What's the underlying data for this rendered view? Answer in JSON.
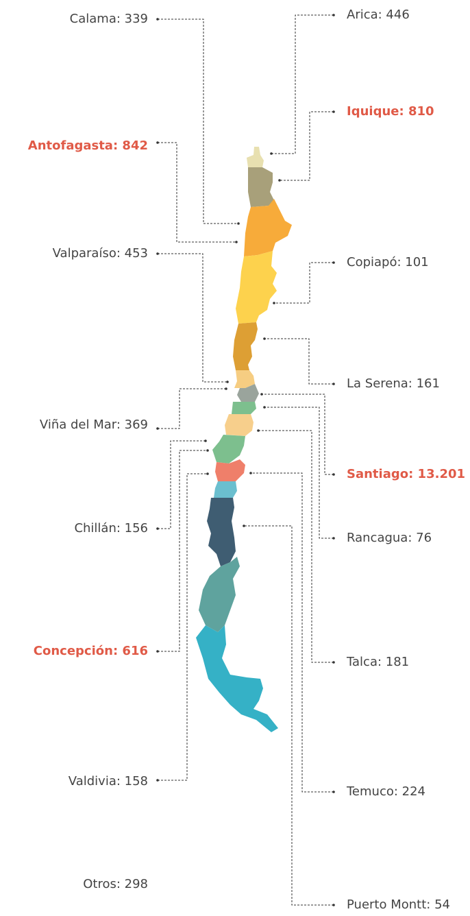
{
  "labels": {
    "left": [
      {
        "text": "Calama: 339",
        "bold": false
      },
      {
        "text": "Antofagasta: 842",
        "bold": true
      },
      {
        "text": "Valparaíso: 453",
        "bold": false
      },
      {
        "text": "Viña del Mar: 369",
        "bold": false
      },
      {
        "text": "Chillán: 156",
        "bold": false
      },
      {
        "text": "Concepción: 616",
        "bold": true
      },
      {
        "text": "Valdivia: 158",
        "bold": false
      },
      {
        "text": "Otros: 298",
        "bold": false
      }
    ],
    "right": [
      {
        "text": "Arica: 446",
        "bold": false
      },
      {
        "text": "Iquique: 810",
        "bold": true
      },
      {
        "text": "Copiapó: 101",
        "bold": false
      },
      {
        "text": "La Serena: 161",
        "bold": false
      },
      {
        "text": "Santiago: 13.201",
        "bold": true
      },
      {
        "text": "Rancagua: 76",
        "bold": false
      },
      {
        "text": "Talca: 181",
        "bold": false
      },
      {
        "text": "Temuco: 224",
        "bold": false
      },
      {
        "text": "Puerto Montt: 54",
        "bold": false
      }
    ]
  }
}
